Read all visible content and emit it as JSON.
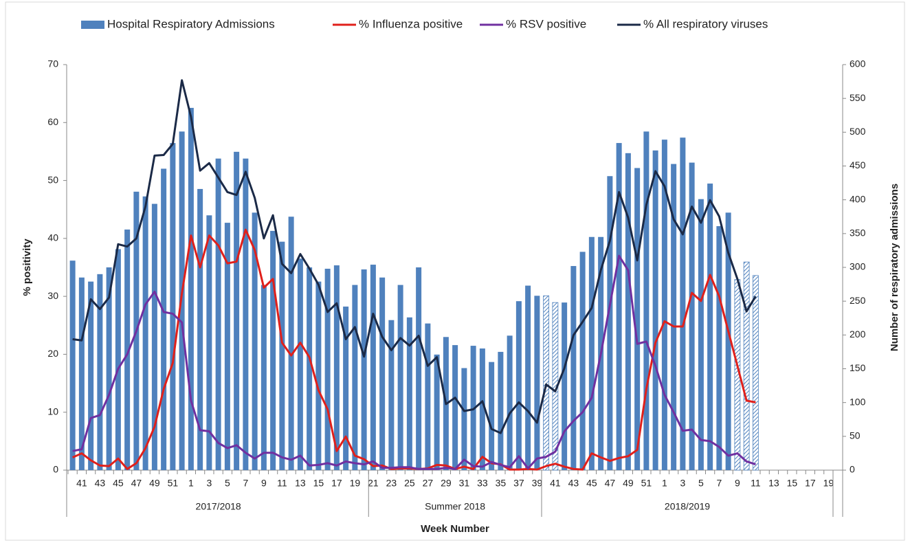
{
  "chart_data": {
    "type": "combo",
    "ylabel": "% positivity",
    "y2label": "Number of respiratory admissions",
    "xlabel": "Week Number",
    "x_groups": [
      "2017/2018",
      "Summer 2018",
      "2018/2019"
    ],
    "ylim": [
      0,
      70
    ],
    "yticks": [
      0,
      10,
      20,
      30,
      40,
      50,
      60,
      70
    ],
    "y2lim": [
      0,
      600
    ],
    "y2ticks": [
      0,
      50,
      100,
      150,
      200,
      250,
      300,
      350,
      400,
      450,
      500,
      550,
      600
    ],
    "legend": "top",
    "categories": [
      null,
      "41",
      null,
      "43",
      null,
      "45",
      null,
      "47",
      null,
      "49",
      null,
      "51",
      null,
      "1",
      null,
      "3",
      null,
      "5",
      null,
      "7",
      null,
      "9",
      null,
      "11",
      null,
      "13",
      null,
      "15",
      null,
      "17",
      null,
      "19",
      null,
      "21",
      null,
      "23",
      null,
      "25",
      null,
      "27",
      null,
      "29",
      null,
      "31",
      null,
      "33",
      null,
      "35",
      null,
      "37",
      null,
      "39",
      null,
      "41",
      null,
      "43",
      null,
      "45",
      null,
      "47",
      null,
      "49",
      null,
      "51",
      null,
      "1",
      null,
      "3",
      null,
      "5",
      null,
      "7",
      null,
      "9",
      null,
      "11",
      null,
      "13",
      null,
      "15",
      null,
      "17",
      null,
      "19"
    ],
    "series": [
      {
        "name": "Hospital Respiratory Admissions",
        "type": "bar",
        "axis": "y2",
        "color": "#4f81bd",
        "values": [
          310,
          285,
          279,
          290,
          300,
          327,
          356,
          412,
          405,
          394,
          446,
          484,
          501,
          536,
          416,
          377,
          461,
          366,
          471,
          461,
          381,
          274,
          354,
          338,
          375,
          313,
          300,
          279,
          298,
          303,
          242,
          274,
          297,
          304,
          285,
          222,
          274,
          226,
          300,
          217,
          171,
          197,
          185,
          151,
          184,
          180,
          160,
          175,
          199,
          250,
          273,
          258,
          258,
          248,
          248,
          302,
          323,
          345,
          345,
          435,
          484,
          469,
          447,
          501,
          473,
          489,
          453,
          492,
          455,
          401,
          424,
          361,
          381,
          282,
          308,
          288,
          null,
          null,
          null,
          null,
          null,
          null,
          null,
          null
        ],
        "hatched": [
          false,
          false,
          false,
          false,
          false,
          false,
          false,
          false,
          false,
          false,
          false,
          false,
          false,
          false,
          false,
          false,
          false,
          false,
          false,
          false,
          false,
          false,
          false,
          false,
          false,
          false,
          false,
          false,
          false,
          false,
          false,
          false,
          false,
          false,
          false,
          false,
          false,
          false,
          false,
          false,
          false,
          false,
          false,
          false,
          false,
          false,
          false,
          false,
          false,
          false,
          false,
          false,
          true,
          true,
          false,
          false,
          false,
          false,
          false,
          false,
          false,
          false,
          false,
          false,
          false,
          false,
          false,
          false,
          false,
          false,
          false,
          false,
          false,
          true,
          true,
          true,
          false,
          false,
          false,
          false,
          false,
          false,
          false,
          false
        ]
      },
      {
        "name": "% Influenza positive",
        "type": "line",
        "color": "#e0201b",
        "values": [
          2.2,
          2.9,
          1.7,
          0.8,
          0.7,
          2.0,
          0.2,
          1.2,
          3.8,
          7.5,
          14.0,
          18.5,
          30.5,
          40.5,
          35.0,
          40.5,
          38.8,
          35.7,
          36.0,
          41.5,
          38.0,
          31.5,
          33.0,
          22.0,
          19.8,
          22.0,
          19.5,
          13.8,
          10.5,
          3.3,
          5.8,
          2.5,
          1.9,
          0.7,
          0.8,
          0.2,
          0.3,
          0.3,
          0.2,
          0.3,
          0.9,
          0.8,
          0.2,
          0.6,
          0.2,
          2.3,
          1.2,
          1.0,
          0.1,
          0.1,
          0.2,
          0.1,
          0.7,
          1.1,
          0.6,
          0.2,
          0.1,
          2.9,
          2.2,
          1.6,
          2.1,
          2.4,
          3.5,
          14.0,
          22.0,
          25.7,
          24.8,
          24.8,
          30.6,
          29.2,
          33.7,
          30.0,
          24.0,
          18.0,
          12.0,
          11.7,
          null,
          null,
          null,
          null,
          null,
          null,
          null,
          null
        ]
      },
      {
        "name": "% RSV positive",
        "type": "line",
        "color": "#7030a0",
        "values": [
          3.3,
          3.6,
          9.0,
          9.5,
          13.0,
          17.5,
          20.0,
          24.0,
          28.6,
          30.8,
          27.3,
          27.0,
          25.5,
          12.0,
          6.9,
          6.7,
          4.7,
          3.8,
          4.3,
          3.0,
          2.0,
          3.0,
          3.0,
          2.2,
          1.8,
          2.5,
          0.8,
          0.9,
          1.2,
          0.8,
          1.5,
          1.2,
          1.0,
          1.5,
          0.4,
          0.4,
          0.5,
          0.5,
          0.2,
          0.2,
          0.2,
          0.4,
          0.2,
          1.8,
          0.7,
          0.6,
          1.4,
          0.9,
          0.5,
          2.4,
          0.3,
          2.0,
          2.3,
          3.2,
          6.7,
          8.5,
          10.0,
          12.5,
          20.0,
          28.5,
          37.0,
          34.5,
          21.8,
          22.2,
          18.0,
          13.0,
          10.0,
          6.8,
          7.0,
          5.2,
          5.0,
          4.0,
          2.5,
          2.9,
          1.5,
          1.0,
          null,
          null,
          null,
          null,
          null,
          null,
          null,
          null
        ]
      },
      {
        "name": "% All respiratory viruses",
        "type": "line",
        "color": "#1b2a47",
        "values": [
          22.6,
          22.4,
          29.5,
          27.8,
          29.8,
          39.0,
          38.6,
          40.0,
          45.5,
          54.3,
          54.4,
          56.3,
          67.3,
          61.0,
          51.7,
          53.0,
          50.5,
          48.0,
          47.5,
          51.5,
          47.0,
          40.0,
          44.0,
          35.6,
          34.0,
          37.3,
          34.8,
          32.0,
          27.3,
          28.8,
          22.6,
          24.7,
          19.6,
          27.0,
          23.0,
          20.7,
          22.8,
          21.5,
          23.2,
          18.0,
          19.5,
          11.4,
          12.5,
          10.2,
          10.5,
          11.9,
          7.1,
          6.4,
          9.8,
          11.7,
          10.2,
          8.2,
          14.8,
          13.6,
          17.6,
          23.3,
          25.6,
          28.0,
          34.5,
          39.6,
          48.0,
          43.6,
          36.2,
          45.8,
          51.6,
          49.0,
          43.3,
          40.7,
          45.5,
          42.7,
          46.6,
          43.8,
          37.5,
          33.0,
          27.4,
          30.0,
          null,
          null,
          null,
          null,
          null,
          null,
          null,
          null
        ]
      }
    ]
  }
}
